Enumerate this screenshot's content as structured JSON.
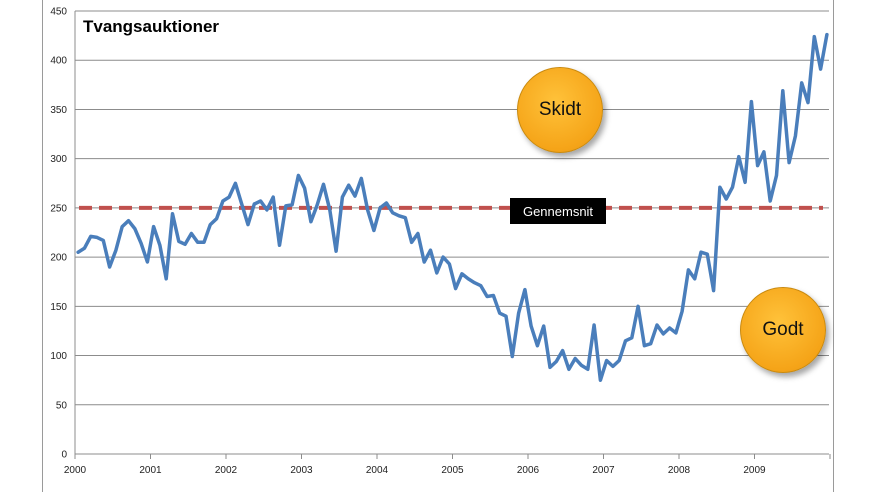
{
  "chart_data": {
    "type": "line",
    "title": "Tvangsauktioner",
    "xlabel": "",
    "ylabel": "",
    "ylim": [
      0,
      450
    ],
    "yticks": [
      0,
      50,
      100,
      150,
      200,
      250,
      300,
      350,
      400,
      450
    ],
    "xlim": [
      2000,
      2010
    ],
    "xticks": [
      "2000",
      "2001",
      "2002",
      "2003",
      "2004",
      "2005",
      "2006",
      "2007",
      "2008",
      "2009"
    ],
    "grid": true,
    "series": [
      {
        "color": "#4a7ebb",
        "x_start_year": 2000,
        "points_per_year": 12,
        "values": [
          205,
          209,
          221,
          220,
          217,
          190,
          207,
          231,
          237,
          229,
          214,
          195,
          231,
          212,
          178,
          244,
          216,
          213,
          224,
          215,
          215,
          233,
          239,
          257,
          261,
          275,
          254,
          233,
          254,
          257,
          248,
          261,
          212,
          252,
          253,
          283,
          270,
          236,
          253,
          274,
          248,
          206,
          261,
          273,
          262,
          280,
          248,
          227,
          250,
          255,
          245,
          242,
          240,
          215,
          224,
          195,
          207,
          184,
          200,
          193,
          168,
          183,
          178,
          174,
          171,
          160,
          161,
          143,
          140,
          99,
          143,
          167,
          130,
          110,
          130,
          88,
          94,
          105,
          86,
          97,
          90,
          86,
          131,
          75,
          95,
          89,
          95,
          115,
          118,
          150,
          110,
          112,
          131,
          122,
          128,
          123,
          145,
          187,
          178,
          205,
          203,
          166,
          271,
          259,
          271,
          302,
          276,
          358,
          293,
          307,
          257,
          283,
          369,
          296,
          323,
          377,
          357,
          424,
          391,
          426
        ]
      }
    ],
    "reference_line": {
      "value": 250,
      "color": "#c0504d",
      "label": "Gennemsnit"
    },
    "annotations": [
      {
        "text": "Skidt",
        "color": "#f5a418"
      },
      {
        "text": "Godt",
        "color": "#f5a418"
      }
    ]
  }
}
